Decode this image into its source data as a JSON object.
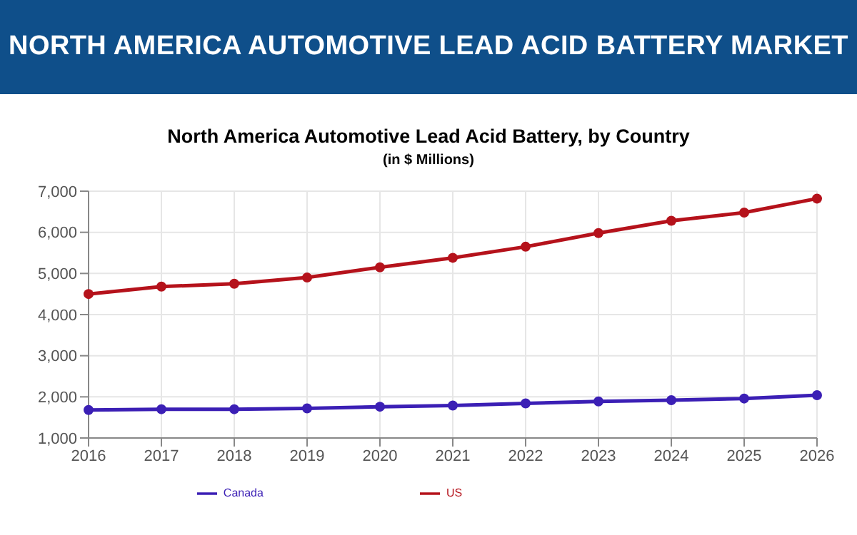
{
  "chart_data": {
    "type": "line",
    "title": "NORTH AMERICA AUTOMOTIVE LEAD ACID BATTERY MARKET",
    "subtitle": "North America Automotive Lead Acid Battery, by Country",
    "annotations": [
      "(in $ Millions)"
    ],
    "categories": [
      "2016",
      "2017",
      "2018",
      "2019",
      "2020",
      "2021",
      "2022",
      "2023",
      "2024",
      "2025",
      "2026"
    ],
    "series": [
      {
        "name": "US",
        "color": "#b5121b",
        "values": [
          4500,
          4680,
          4750,
          4900,
          5150,
          5380,
          5650,
          5980,
          6280,
          6480,
          6820
        ]
      },
      {
        "name": "Canada",
        "color": "#3b1fb5",
        "values": [
          1680,
          1700,
          1700,
          1720,
          1760,
          1790,
          1840,
          1890,
          1920,
          1960,
          2040
        ]
      }
    ],
    "ylim": [
      1000,
      7000
    ],
    "yticks": [
      {
        "value": 1000,
        "label": "1,000"
      },
      {
        "value": 2000,
        "label": "2,000"
      },
      {
        "value": 3000,
        "label": "3,000"
      },
      {
        "value": 4000,
        "label": "4,000"
      },
      {
        "value": 5000,
        "label": "5,000"
      },
      {
        "value": 6000,
        "label": "6,000"
      },
      {
        "value": 7000,
        "label": "7,000"
      }
    ],
    "grid": true,
    "legend": "bottom",
    "marker": "circle",
    "line_style": "solid"
  }
}
